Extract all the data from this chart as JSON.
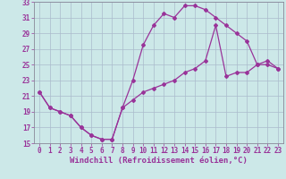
{
  "title": "",
  "xlabel": "Windchill (Refroidissement éolien,°C)",
  "ylabel": "",
  "bg_color": "#cce8e8",
  "line_color": "#993399",
  "grid_color": "#aabbcc",
  "xlim": [
    -0.5,
    23.5
  ],
  "ylim": [
    15,
    33
  ],
  "xticks": [
    0,
    1,
    2,
    3,
    4,
    5,
    6,
    7,
    8,
    9,
    10,
    11,
    12,
    13,
    14,
    15,
    16,
    17,
    18,
    19,
    20,
    21,
    22,
    23
  ],
  "yticks": [
    15,
    17,
    19,
    21,
    23,
    25,
    27,
    29,
    31,
    33
  ],
  "line1_x": [
    0,
    1,
    2,
    3,
    4,
    5,
    6,
    7,
    8,
    9,
    10,
    11,
    12,
    13,
    14,
    15,
    16,
    17,
    18,
    19,
    20,
    21,
    22,
    23
  ],
  "line1_y": [
    21.5,
    19.5,
    19.0,
    18.5,
    17.0,
    16.0,
    15.5,
    15.5,
    19.5,
    23.0,
    27.5,
    30.0,
    31.5,
    31.0,
    32.5,
    32.5,
    32.0,
    31.0,
    30.0,
    29.0,
    28.0,
    25.0,
    25.0,
    24.5
  ],
  "line2_x": [
    0,
    1,
    2,
    3,
    4,
    5,
    6,
    7,
    8,
    9,
    10,
    11,
    12,
    13,
    14,
    15,
    16,
    17,
    18,
    19,
    20,
    21,
    22,
    23
  ],
  "line2_y": [
    21.5,
    19.5,
    19.0,
    18.5,
    17.0,
    16.0,
    15.5,
    15.5,
    19.5,
    20.5,
    21.5,
    22.0,
    22.5,
    23.0,
    24.0,
    24.5,
    25.5,
    30.0,
    23.5,
    24.0,
    24.0,
    25.0,
    25.5,
    24.5
  ],
  "marker": "D",
  "marker_size": 2.0,
  "line_width": 0.9,
  "tick_fontsize": 5.5,
  "label_fontsize": 6.5
}
